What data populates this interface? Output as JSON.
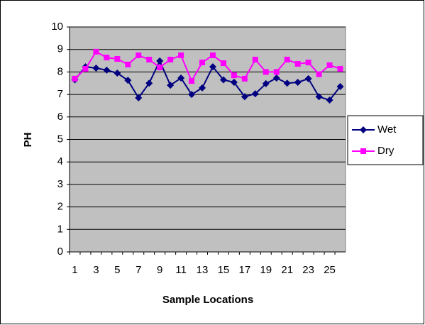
{
  "chart_data": {
    "type": "line",
    "x_label": "Sample Locations",
    "y_label": "PH",
    "categories": [
      1,
      null,
      3,
      null,
      5,
      null,
      7,
      null,
      9,
      null,
      11,
      null,
      13,
      null,
      15,
      null,
      17,
      null,
      19,
      null,
      21,
      null,
      23,
      null,
      25,
      null
    ],
    "series": [
      {
        "name": "Wet",
        "color": "#000080",
        "marker": "diamond",
        "values": [
          7.65,
          8.23,
          8.17,
          8.08,
          7.95,
          7.63,
          6.85,
          7.5,
          8.49,
          7.41,
          7.73,
          7.0,
          7.29,
          8.23,
          7.65,
          7.54,
          6.9,
          7.03,
          7.48,
          7.73,
          7.5,
          7.54,
          7.7,
          6.9,
          6.75,
          7.35
        ]
      },
      {
        "name": "Dry",
        "color": "#ff00ff",
        "marker": "square",
        "values": [
          7.7,
          8.14,
          8.9,
          8.64,
          8.58,
          8.33,
          8.74,
          8.55,
          8.2,
          8.55,
          8.74,
          7.6,
          8.42,
          8.74,
          8.39,
          7.85,
          7.7,
          8.55,
          8.0,
          8.0,
          8.55,
          8.36,
          8.42,
          7.9,
          8.3,
          8.14
        ]
      }
    ],
    "ylim": [
      0,
      10
    ],
    "yticks": [
      0,
      1,
      2,
      3,
      4,
      5,
      6,
      7,
      8,
      9,
      10
    ],
    "grid": true,
    "plot_background": "#c0c0c0",
    "legend": "right"
  }
}
